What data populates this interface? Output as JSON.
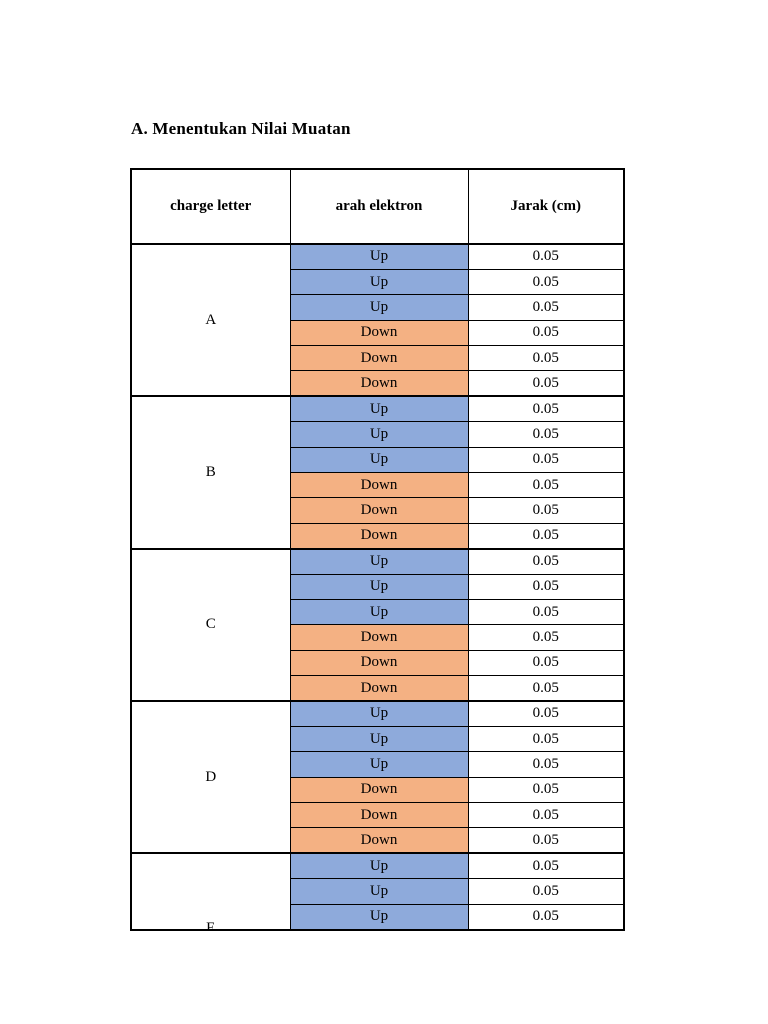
{
  "title": "A. Menentukan Nilai Muatan",
  "table": {
    "headers": [
      "charge letter",
      "arah elektron",
      "Jarak (cm)"
    ],
    "colors": {
      "up_fill": "#8EAADB",
      "down_fill": "#F4B183",
      "border": "#000000",
      "page_background": "#FFFFFF"
    },
    "groups": [
      {
        "letter": "A",
        "rows": [
          {
            "direction": "Up",
            "distance": "0.05"
          },
          {
            "direction": "Up",
            "distance": "0.05"
          },
          {
            "direction": "Up",
            "distance": "0.05"
          },
          {
            "direction": "Down",
            "distance": "0.05"
          },
          {
            "direction": "Down",
            "distance": "0.05"
          },
          {
            "direction": "Down",
            "distance": "0.05"
          }
        ]
      },
      {
        "letter": "B",
        "rows": [
          {
            "direction": "Up",
            "distance": "0.05"
          },
          {
            "direction": "Up",
            "distance": "0.05"
          },
          {
            "direction": "Up",
            "distance": "0.05"
          },
          {
            "direction": "Down",
            "distance": "0.05"
          },
          {
            "direction": "Down",
            "distance": "0.05"
          },
          {
            "direction": "Down",
            "distance": "0.05"
          }
        ]
      },
      {
        "letter": "C",
        "rows": [
          {
            "direction": "Up",
            "distance": "0.05"
          },
          {
            "direction": "Up",
            "distance": "0.05"
          },
          {
            "direction": "Up",
            "distance": "0.05"
          },
          {
            "direction": "Down",
            "distance": "0.05"
          },
          {
            "direction": "Down",
            "distance": "0.05"
          },
          {
            "direction": "Down",
            "distance": "0.05"
          }
        ]
      },
      {
        "letter": "D",
        "rows": [
          {
            "direction": "Up",
            "distance": "0.05"
          },
          {
            "direction": "Up",
            "distance": "0.05"
          },
          {
            "direction": "Up",
            "distance": "0.05"
          },
          {
            "direction": "Down",
            "distance": "0.05"
          },
          {
            "direction": "Down",
            "distance": "0.05"
          },
          {
            "direction": "Down",
            "distance": "0.05"
          }
        ]
      },
      {
        "letter": "E",
        "clipped": true,
        "rows": [
          {
            "direction": "Up",
            "distance": "0.05"
          },
          {
            "direction": "Up",
            "distance": "0.05"
          },
          {
            "direction": "Up",
            "distance": "0.05"
          }
        ]
      }
    ]
  }
}
